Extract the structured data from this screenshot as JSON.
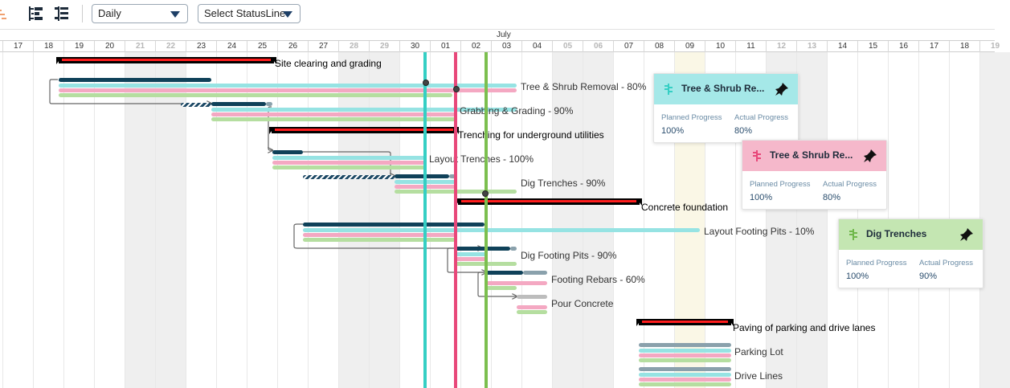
{
  "toolbar": {
    "view_dropdown": "Daily",
    "statusline_dropdown": "Select StatusLine",
    "icons": [
      "gantt-icon",
      "indent-icon",
      "outdent-icon"
    ]
  },
  "timeline": {
    "month_label": "July",
    "days": [
      {
        "label": "17",
        "weekend": false
      },
      {
        "label": "18",
        "weekend": false
      },
      {
        "label": "19",
        "weekend": false
      },
      {
        "label": "20",
        "weekend": false
      },
      {
        "label": "21",
        "weekend": true
      },
      {
        "label": "22",
        "weekend": true
      },
      {
        "label": "23",
        "weekend": false
      },
      {
        "label": "24",
        "weekend": false
      },
      {
        "label": "25",
        "weekend": false
      },
      {
        "label": "26",
        "weekend": false
      },
      {
        "label": "27",
        "weekend": false
      },
      {
        "label": "28",
        "weekend": true
      },
      {
        "label": "29",
        "weekend": true
      },
      {
        "label": "30",
        "weekend": false
      },
      {
        "label": "01",
        "weekend": false
      },
      {
        "label": "02",
        "weekend": false
      },
      {
        "label": "03",
        "weekend": false
      },
      {
        "label": "04",
        "weekend": false
      },
      {
        "label": "05",
        "weekend": true
      },
      {
        "label": "06",
        "weekend": true
      },
      {
        "label": "07",
        "weekend": false
      },
      {
        "label": "08",
        "weekend": false
      },
      {
        "label": "09",
        "weekend": false
      },
      {
        "label": "10",
        "weekend": false
      },
      {
        "label": "11",
        "weekend": false
      },
      {
        "label": "12",
        "weekend": true
      },
      {
        "label": "13",
        "weekend": true
      },
      {
        "label": "14",
        "weekend": false
      },
      {
        "label": "15",
        "weekend": false
      },
      {
        "label": "16",
        "weekend": false
      },
      {
        "label": "17",
        "weekend": false
      },
      {
        "label": "18",
        "weekend": false
      },
      {
        "label": "19",
        "weekend": true
      }
    ]
  },
  "tasks": {
    "t1": "Site clearing and grading",
    "t2": "Tree & Shrub Removal - 80%",
    "t3": "Grabbing & Grading - 90%",
    "t4": "Trenching for underground utilities",
    "t5": "Layout Trenches - 100%",
    "t6": "Dig Trenches - 90%",
    "t7": "Concrete foundation",
    "t8": "Layout Footing Pits - 10%",
    "t9": "Dig Footing Pits - 90%",
    "t10": "Footing Rebars - 60%",
    "t11": "Pour Concrete",
    "t12": "Paving of parking and drive lanes",
    "t13": "Parking Lot",
    "t14": "Drive Lines"
  },
  "statuslines": {
    "cyan": "#35cfc4",
    "pink": "#e8487a",
    "green": "#7cbf4f"
  },
  "cards": [
    {
      "title": "Tree & Shrub Re...",
      "planned_label": "Planned Progress",
      "planned": "100%",
      "actual_label": "Actual Progress",
      "actual": "80%",
      "color": "#a5e8e8",
      "icon_color": "#35cfc4"
    },
    {
      "title": "Tree & Shrub Re...",
      "planned_label": "Planned Progress",
      "planned": "100%",
      "actual_label": "Actual Progress",
      "actual": "80%",
      "color": "#f5b8cb",
      "icon_color": "#e8487a"
    },
    {
      "title": "Dig Trenches",
      "planned_label": "Planned Progress",
      "planned": "100%",
      "actual_label": "Actual Progress",
      "actual": "90%",
      "color": "#c4e6b2",
      "icon_color": "#6fb84a"
    }
  ]
}
